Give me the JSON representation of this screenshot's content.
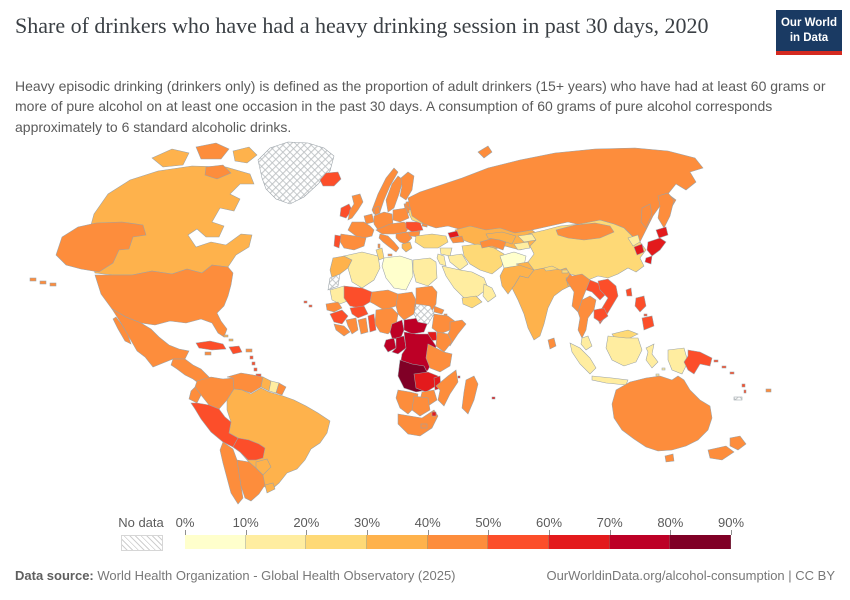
{
  "header": {
    "title": "Share of drinkers who have had a heavy drinking session in past 30 days, 2020",
    "subtitle": "Heavy episodic drinking (drinkers only) is defined as the proportion of adult drinkers (15+ years) who have had at least 60 grams or more of pure alcohol on at least one occasion in the past 30 days. A consumption of 60 grams of pure alcohol corresponds approximately to 6 standard alcoholic drinks.",
    "logo": {
      "line1": "Our World",
      "line2": "in Data",
      "bg_color": "#1a3a63",
      "accent_color": "#d42a20"
    }
  },
  "legend": {
    "no_data_label": "No data",
    "tick_labels": [
      "0%",
      "10%",
      "20%",
      "30%",
      "40%",
      "50%",
      "60%",
      "70%",
      "80%",
      "90%"
    ]
  },
  "footer": {
    "source_label": "Data source:",
    "source_text": " World Health Organization - Global Health Observatory (2025)",
    "link_text": "OurWorldinData.org/alcohol-consumption | CC BY"
  },
  "chart_data": {
    "type": "choropleth",
    "title": "Share of drinkers who have had a heavy drinking session in past 30 days",
    "year": "2020",
    "unit": "% of drinkers (15+ years)",
    "bin_colors": [
      "#ffffcc",
      "#ffeda0",
      "#fed976",
      "#feb24c",
      "#fd8d3c",
      "#fc4e2a",
      "#e31a1c",
      "#bd0026",
      "#800026"
    ],
    "bin_ranges": [
      "0-10%",
      "10-20%",
      "20-30%",
      "30-40%",
      "40-50%",
      "50-60%",
      "60-70%",
      "70-80%",
      "80-90%"
    ],
    "values_note": "country value = index into bin_ranges (approx. decile shown on map); null = No data (hatched)",
    "countries": {
      "canada": 3,
      "canadian-arctic-a": 3,
      "canadian-arctic-b": 4,
      "united-states": 4,
      "mexico": 4,
      "central-america": 4,
      "cuba": 5,
      "hispaniola": 5,
      "jamaica": 4,
      "puerto-rico": 4,
      "bahamas": 3,
      "lesser-antilles": 5,
      "trinidad": 5,
      "greenland": null,
      "colombia": 4,
      "venezuela": 4,
      "guyana": 3,
      "suriname": 1,
      "french-guiana": 4,
      "ecuador": 4,
      "peru": 5,
      "brazil": 3,
      "bolivia": 5,
      "paraguay": 3,
      "chile": 4,
      "argentina": 4,
      "uruguay": 3,
      "iceland": 5,
      "ireland": 5,
      "united-kingdom": 4,
      "norway": 4,
      "sweden": 4,
      "finland": 4,
      "baltics": 4,
      "denmark": 4,
      "germany": 4,
      "benelux": 4,
      "poland": 4,
      "france": 4,
      "spain": 4,
      "portugal": 5,
      "central-europe": 4,
      "italy": 4,
      "balkans": 4,
      "greece": 3,
      "romania": 5,
      "bulgaria": 4,
      "ukraine": 2,
      "belarus": 4,
      "moldova": 4,
      "russia": 4,
      "kazakhstan": 3,
      "georgia": 6,
      "armenia-azerbaijan": 4,
      "turkey": 2,
      "syria": 1,
      "iraq": 1,
      "israel-jordan": 1,
      "saudi-arabia": 1,
      "yemen": 2,
      "oman": 1,
      "iran": 2,
      "afghanistan": 0,
      "turkmenistan": 4,
      "uzbekistan": 3,
      "kyrgyzstan": 1,
      "tajikistan": 1,
      "pakistan": 3,
      "india": 3,
      "nepal": 2,
      "bhutan": 2,
      "bangladesh": 3,
      "sri-lanka": 4,
      "china": 2,
      "mongolia": 4,
      "north-korea": 1,
      "south-korea": 6,
      "japan": 6,
      "taiwan": 5,
      "myanmar": 4,
      "laos": 5,
      "vietnam": 5,
      "thailand": 4,
      "cambodia": 5,
      "malaysia": 1,
      "malaysia-borneo": 2,
      "indonesia": 1,
      "papua-new-guinea": 5,
      "philippines": 5,
      "australia": 4,
      "tasmania": 4,
      "new-zealand": 4,
      "fiji": 4,
      "solomon-islands": 5,
      "vanuatu": 5,
      "new-caledonia": null,
      "morocco": 3,
      "western-sahara": null,
      "algeria": 1,
      "tunisia": 2,
      "libya": 0,
      "egypt": 1,
      "mauritania": 1,
      "mali": 5,
      "niger": 4,
      "chad": 4,
      "sudan": 4,
      "south-sudan": null,
      "eritrea": 4,
      "djibouti": 4,
      "senegal": 4,
      "guinea": 5,
      "sierra-leone-liberia": 4,
      "ivory-coast": 4,
      "burkina-faso": 5,
      "ghana": 4,
      "togo-benin": 5,
      "nigeria": 4,
      "cameroon": 7,
      "central-african-republic": 7,
      "ethiopia": 4,
      "somalia": 4,
      "uganda": 6,
      "kenya": 4,
      "rwanda-burundi": 6,
      "gabon": 7,
      "congo": 7,
      "drc": 7,
      "angola": 8,
      "zambia": 6,
      "malawi": 6,
      "tanzania": 4,
      "mozambique": 4,
      "zimbabwe": 4,
      "namibia": 4,
      "botswana": 4,
      "south-africa": 4,
      "lesotho": 4,
      "eswatini": 6,
      "madagascar": 4,
      "comoros": 6,
      "mauritius": 6,
      "madeira": 5,
      "cape-verde": 5
    }
  }
}
